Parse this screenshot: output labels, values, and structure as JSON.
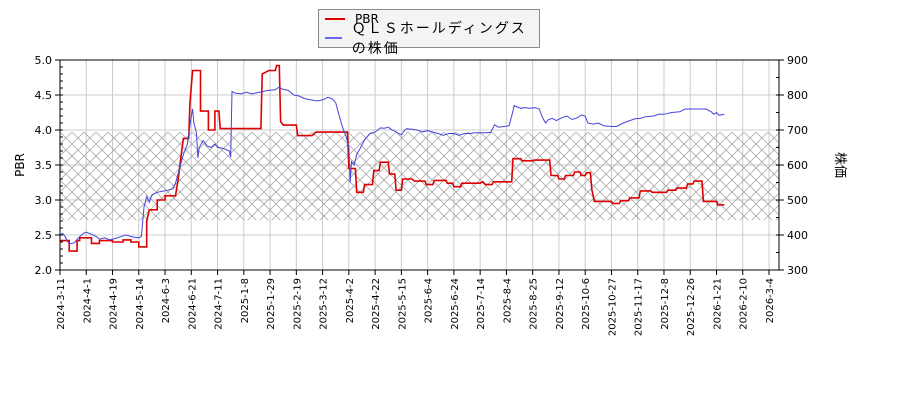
{
  "legend": {
    "items": [
      {
        "label": "PBR",
        "color": "#dd0000"
      },
      {
        "label": "ＱＬＳホールディングスの株価",
        "color": "#4444dd"
      }
    ]
  },
  "chart_data": {
    "type": "line",
    "title": "",
    "xlabel": "",
    "ylabel": "PBR",
    "ylabel_right": "株価",
    "ylim": [
      2.0,
      5.0
    ],
    "ylim_right": [
      300,
      900
    ],
    "yticks": [
      "2.0",
      "2.5",
      "3.0",
      "3.5",
      "4.0",
      "4.5",
      "5.0"
    ],
    "yticks_right": [
      "300",
      "400",
      "500",
      "600",
      "700",
      "800",
      "900"
    ],
    "grid": true,
    "legend_position": "top-center",
    "band": {
      "description": "hatched band",
      "from": 2.71,
      "to": 3.97
    },
    "categories": [
      "2024-3-11",
      "2024-4-1",
      "2024-4-19",
      "2024-5-14",
      "2024-6-3",
      "2024-6-21",
      "2024-7-11",
      "2025-1-8",
      "2025-1-29",
      "2025-2-19",
      "2025-3-12",
      "2025-4-2",
      "2025-4-22",
      "2025-5-15",
      "2025-6-4",
      "2025-6-24",
      "2025-7-14",
      "2025-8-4",
      "2025-8-25",
      "2025-9-12",
      "2025-10-6",
      "2025-10-27",
      "2025-11-17",
      "2025-12-8",
      "2025-12-26",
      "2026-1-21",
      "2026-2-10",
      "2026-3-4"
    ],
    "series": [
      {
        "name": "PBR",
        "axis": "left",
        "color": "#dd0000",
        "step": true,
        "points": [
          [
            0,
            2.42
          ],
          [
            0.35,
            2.42
          ],
          [
            0.35,
            2.27
          ],
          [
            0.65,
            2.27
          ],
          [
            0.65,
            2.42
          ],
          [
            0.75,
            2.42
          ],
          [
            0.75,
            2.46
          ],
          [
            1.2,
            2.46
          ],
          [
            1.2,
            2.38
          ],
          [
            1.5,
            2.38
          ],
          [
            1.5,
            2.42
          ],
          [
            2.0,
            2.42
          ],
          [
            2.0,
            2.4
          ],
          [
            2.4,
            2.4
          ],
          [
            2.4,
            2.43
          ],
          [
            2.7,
            2.43
          ],
          [
            2.7,
            2.4
          ],
          [
            3.0,
            2.4
          ],
          [
            3.0,
            2.33
          ],
          [
            3.3,
            2.33
          ],
          [
            3.3,
            2.7
          ],
          [
            3.4,
            2.86
          ],
          [
            3.7,
            2.86
          ],
          [
            3.7,
            3.0
          ],
          [
            4.0,
            3.0
          ],
          [
            4.0,
            3.06
          ],
          [
            4.4,
            3.06
          ],
          [
            4.5,
            3.3
          ],
          [
            4.6,
            3.6
          ],
          [
            4.7,
            3.88
          ],
          [
            4.9,
            3.88
          ],
          [
            4.95,
            4.4
          ],
          [
            5.05,
            4.85
          ],
          [
            5.35,
            4.85
          ],
          [
            5.35,
            4.27
          ],
          [
            5.65,
            4.27
          ],
          [
            5.65,
            4.0
          ],
          [
            5.9,
            4.0
          ],
          [
            5.9,
            4.27
          ],
          [
            6.05,
            4.27
          ],
          [
            6.1,
            4.02
          ],
          [
            7.65,
            4.02
          ],
          [
            7.7,
            4.8
          ],
          [
            7.95,
            4.85
          ],
          [
            8.2,
            4.85
          ],
          [
            8.25,
            4.92
          ],
          [
            8.35,
            4.92
          ],
          [
            8.4,
            4.12
          ],
          [
            8.5,
            4.07
          ],
          [
            9.0,
            4.07
          ],
          [
            9.05,
            3.92
          ],
          [
            9.6,
            3.92
          ],
          [
            9.75,
            3.97
          ],
          [
            10.0,
            3.97
          ],
          [
            10.95,
            3.97
          ],
          [
            11.0,
            3.45
          ],
          [
            11.25,
            3.45
          ],
          [
            11.3,
            3.11
          ],
          [
            11.55,
            3.11
          ],
          [
            11.6,
            3.22
          ],
          [
            11.9,
            3.22
          ],
          [
            11.95,
            3.42
          ],
          [
            12.15,
            3.42
          ],
          [
            12.2,
            3.54
          ],
          [
            12.5,
            3.54
          ],
          [
            12.55,
            3.37
          ],
          [
            12.75,
            3.37
          ],
          [
            12.8,
            3.14
          ],
          [
            13.0,
            3.14
          ],
          [
            13.05,
            3.3
          ],
          [
            13.4,
            3.3
          ],
          [
            13.5,
            3.27
          ],
          [
            13.9,
            3.27
          ],
          [
            13.95,
            3.22
          ],
          [
            14.2,
            3.22
          ],
          [
            14.25,
            3.28
          ],
          [
            14.7,
            3.28
          ],
          [
            14.75,
            3.24
          ],
          [
            14.95,
            3.24
          ],
          [
            15.0,
            3.19
          ],
          [
            15.25,
            3.19
          ],
          [
            15.3,
            3.24
          ],
          [
            16.0,
            3.24
          ],
          [
            16.1,
            3.26
          ],
          [
            16.2,
            3.22
          ],
          [
            16.45,
            3.22
          ],
          [
            16.5,
            3.26
          ],
          [
            17.2,
            3.26
          ],
          [
            17.25,
            3.59
          ],
          [
            17.55,
            3.59
          ],
          [
            17.6,
            3.56
          ],
          [
            18.0,
            3.56
          ],
          [
            18.05,
            3.57
          ],
          [
            18.65,
            3.57
          ],
          [
            18.7,
            3.35
          ],
          [
            18.95,
            3.35
          ],
          [
            19.0,
            3.3
          ],
          [
            19.2,
            3.3
          ],
          [
            19.25,
            3.35
          ],
          [
            19.55,
            3.35
          ],
          [
            19.6,
            3.4
          ],
          [
            19.8,
            3.4
          ],
          [
            19.85,
            3.35
          ],
          [
            20.0,
            3.35
          ],
          [
            20.05,
            3.39
          ],
          [
            20.2,
            3.39
          ],
          [
            20.25,
            3.15
          ],
          [
            20.35,
            2.98
          ],
          [
            21.0,
            2.98
          ],
          [
            21.05,
            2.95
          ],
          [
            21.3,
            2.95
          ],
          [
            21.35,
            2.99
          ],
          [
            21.65,
            2.99
          ],
          [
            21.7,
            3.03
          ],
          [
            22.05,
            3.03
          ],
          [
            22.1,
            3.13
          ],
          [
            22.5,
            3.13
          ],
          [
            22.55,
            3.11
          ],
          [
            23.1,
            3.11
          ],
          [
            23.15,
            3.14
          ],
          [
            23.45,
            3.14
          ],
          [
            23.5,
            3.17
          ],
          [
            23.85,
            3.17
          ],
          [
            23.9,
            3.23
          ],
          [
            24.1,
            3.23
          ],
          [
            24.15,
            3.27
          ],
          [
            24.45,
            3.27
          ],
          [
            24.5,
            2.98
          ],
          [
            25.0,
            2.98
          ],
          [
            25.05,
            2.93
          ],
          [
            25.3,
            2.93
          ]
        ]
      },
      {
        "name": "ＱＬＳホールディングスの株価",
        "axis": "right",
        "color": "#4444dd",
        "step": false,
        "points": [
          [
            0,
            400
          ],
          [
            0.1,
            405
          ],
          [
            0.2,
            395
          ],
          [
            0.3,
            380
          ],
          [
            0.4,
            375
          ],
          [
            0.55,
            378
          ],
          [
            0.7,
            392
          ],
          [
            0.9,
            405
          ],
          [
            1.0,
            408
          ],
          [
            1.2,
            402
          ],
          [
            1.4,
            395
          ],
          [
            1.5,
            388
          ],
          [
            1.7,
            392
          ],
          [
            1.9,
            386
          ],
          [
            2.1,
            390
          ],
          [
            2.3,
            395
          ],
          [
            2.5,
            400
          ],
          [
            2.6,
            398
          ],
          [
            2.8,
            394
          ],
          [
            3.0,
            392
          ],
          [
            3.1,
            396
          ],
          [
            3.2,
            480
          ],
          [
            3.3,
            510
          ],
          [
            3.4,
            493
          ],
          [
            3.5,
            515
          ],
          [
            3.7,
            522
          ],
          [
            3.9,
            525
          ],
          [
            4.1,
            528
          ],
          [
            4.3,
            532
          ],
          [
            4.4,
            548
          ],
          [
            4.55,
            590
          ],
          [
            4.7,
            630
          ],
          [
            4.85,
            660
          ],
          [
            5.0,
            740
          ],
          [
            5.05,
            760
          ],
          [
            5.1,
            720
          ],
          [
            5.2,
            690
          ],
          [
            5.25,
            620
          ],
          [
            5.3,
            650
          ],
          [
            5.45,
            670
          ],
          [
            5.6,
            655
          ],
          [
            5.75,
            650
          ],
          [
            5.9,
            660
          ],
          [
            6.0,
            650
          ],
          [
            6.2,
            648
          ],
          [
            6.45,
            640
          ],
          [
            6.5,
            622
          ],
          [
            6.55,
            810
          ],
          [
            6.7,
            805
          ],
          [
            6.9,
            803
          ],
          [
            7.1,
            808
          ],
          [
            7.3,
            803
          ],
          [
            7.6,
            808
          ],
          [
            7.9,
            813
          ],
          [
            8.2,
            815
          ],
          [
            8.35,
            823
          ],
          [
            8.45,
            817
          ],
          [
            8.7,
            813
          ],
          [
            8.9,
            800
          ],
          [
            9.1,
            797
          ],
          [
            9.3,
            790
          ],
          [
            9.5,
            787
          ],
          [
            9.8,
            783
          ],
          [
            10.0,
            786
          ],
          [
            10.2,
            793
          ],
          [
            10.35,
            790
          ],
          [
            10.5,
            778
          ],
          [
            10.6,
            750
          ],
          [
            10.75,
            710
          ],
          [
            10.9,
            680
          ],
          [
            11.0,
            650
          ],
          [
            11.05,
            550
          ],
          [
            11.1,
            610
          ],
          [
            11.2,
            600
          ],
          [
            11.3,
            630
          ],
          [
            11.45,
            650
          ],
          [
            11.6,
            672
          ],
          [
            11.8,
            690
          ],
          [
            12.0,
            694
          ],
          [
            12.2,
            706
          ],
          [
            12.35,
            705
          ],
          [
            12.5,
            708
          ],
          [
            12.65,
            700
          ],
          [
            12.75,
            697
          ],
          [
            12.9,
            690
          ],
          [
            13.0,
            686
          ],
          [
            13.1,
            697
          ],
          [
            13.2,
            704
          ],
          [
            13.4,
            702
          ],
          [
            13.6,
            700
          ],
          [
            13.8,
            695
          ],
          [
            14.0,
            698
          ],
          [
            14.2,
            694
          ],
          [
            14.4,
            690
          ],
          [
            14.6,
            685
          ],
          [
            14.8,
            690
          ],
          [
            15.0,
            690
          ],
          [
            15.2,
            685
          ],
          [
            15.4,
            690
          ],
          [
            15.6,
            690
          ],
          [
            15.8,
            692
          ],
          [
            16.0,
            692
          ],
          [
            16.2,
            692
          ],
          [
            16.4,
            693
          ],
          [
            16.55,
            715
          ],
          [
            16.7,
            708
          ],
          [
            16.9,
            710
          ],
          [
            17.1,
            712
          ],
          [
            17.2,
            740
          ],
          [
            17.3,
            770
          ],
          [
            17.4,
            766
          ],
          [
            17.55,
            762
          ],
          [
            17.7,
            764
          ],
          [
            17.9,
            762
          ],
          [
            18.1,
            764
          ],
          [
            18.25,
            760
          ],
          [
            18.35,
            740
          ],
          [
            18.45,
            725
          ],
          [
            18.5,
            720
          ],
          [
            18.6,
            730
          ],
          [
            18.75,
            733
          ],
          [
            18.9,
            727
          ],
          [
            19.1,
            735
          ],
          [
            19.3,
            740
          ],
          [
            19.5,
            730
          ],
          [
            19.7,
            735
          ],
          [
            19.85,
            743
          ],
          [
            20.0,
            740
          ],
          [
            20.1,
            720
          ],
          [
            20.3,
            717
          ],
          [
            20.5,
            720
          ],
          [
            20.7,
            712
          ],
          [
            21.0,
            710
          ],
          [
            21.2,
            710
          ],
          [
            21.45,
            720
          ],
          [
            21.7,
            727
          ],
          [
            21.9,
            732
          ],
          [
            22.1,
            733
          ],
          [
            22.3,
            738
          ],
          [
            22.6,
            740
          ],
          [
            22.8,
            745
          ],
          [
            23.0,
            745
          ],
          [
            23.3,
            750
          ],
          [
            23.6,
            752
          ],
          [
            23.8,
            760
          ],
          [
            24.0,
            760
          ],
          [
            24.3,
            760
          ],
          [
            24.6,
            760
          ],
          [
            24.8,
            752
          ],
          [
            24.9,
            745
          ],
          [
            25.0,
            750
          ],
          [
            25.1,
            742
          ],
          [
            25.3,
            745
          ]
        ]
      }
    ]
  }
}
